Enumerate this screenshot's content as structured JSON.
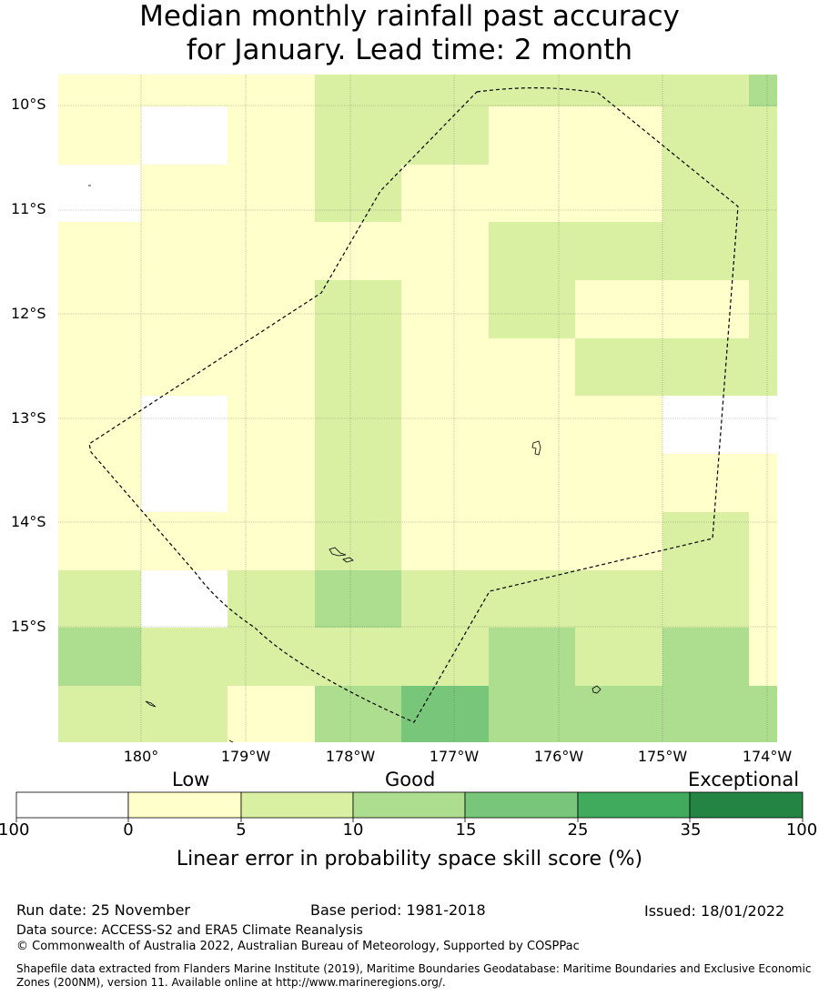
{
  "title_line1": "Median monthly rainfall past accuracy",
  "title_line2": "for January. Lead time: 2 month",
  "map": {
    "lat_labels": [
      "10°S",
      "11°S",
      "12°S",
      "13°S",
      "14°S",
      "15°S"
    ],
    "lat_values": [
      -10,
      -11,
      -12,
      -13,
      -14,
      -15
    ],
    "lon_labels": [
      "180°",
      "179°W",
      "178°W",
      "177°W",
      "176°W",
      "175°W",
      "174°W"
    ],
    "lon_values": [
      180,
      181,
      182,
      183,
      184,
      185,
      186
    ],
    "extent": {
      "lon_min": 179.2,
      "lon_max": 186.1,
      "lat_min": -16.1,
      "lat_max": -9.7
    }
  },
  "legend": {
    "categories": [
      "Low",
      "Good",
      "Exceptional"
    ],
    "ticks": [
      "-100",
      "0",
      "5",
      "10",
      "15",
      "25",
      "35",
      "100"
    ],
    "colors": [
      "#ffffff",
      "#ffffcc",
      "#d9f0a3",
      "#addd8e",
      "#78c679",
      "#41ab5d",
      "#238443"
    ],
    "title": "Linear error in probability space skill score (%)"
  },
  "footer": {
    "run_date": "Run date: 25 November",
    "base_period": "Base period: 1981-2018",
    "issued": "Issued: 18/01/2022",
    "data_source": "Data source: ACCESS-S2 and ERA5 Climate Reanalysis",
    "copyright": "© Commonwealth of Australia 2022, Australian Bureau of Meteorology, Supported by COSPPac",
    "shapefile": "Shapefile data extracted from Flanders Marine Institute (2019), Maritime Boundaries Geodatabase: Maritime Boundaries and Exclusive Economic Zones (200NM), version 11. Available online at http://www.marineregions.org/."
  }
}
